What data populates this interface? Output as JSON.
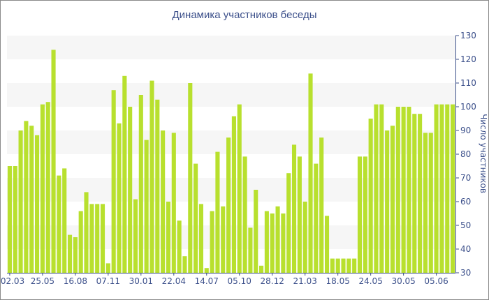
{
  "chart_data": {
    "type": "bar",
    "title": "Динамика участников беседы",
    "ylabel": "Число участников",
    "xlabel": "",
    "ylim": [
      30,
      130
    ],
    "yticks": [
      30,
      40,
      50,
      60,
      70,
      80,
      90,
      100,
      110,
      120,
      130
    ],
    "y_axis_side": "right",
    "grid": "alternating horizontal bands",
    "x_tick_labels": [
      "02.03",
      "25.05",
      "16.08",
      "07.11",
      "30.01",
      "22.04",
      "14.07",
      "05.10",
      "28.12",
      "21.03",
      "18.05",
      "24.05",
      "30.05",
      "05.06"
    ],
    "bar_color": "#b8e02e",
    "values": [
      75,
      75,
      90,
      94,
      92,
      88,
      101,
      102,
      124,
      71,
      74,
      46,
      45,
      56,
      64,
      59,
      59,
      59,
      34,
      107,
      93,
      113,
      100,
      61,
      105,
      86,
      111,
      103,
      90,
      60,
      89,
      52,
      37,
      110,
      76,
      59,
      32,
      56,
      81,
      58,
      87,
      96,
      101,
      79,
      49,
      65,
      33,
      56,
      55,
      58,
      55,
      72,
      84,
      79,
      60,
      114,
      76,
      87,
      54,
      36,
      36,
      36,
      36,
      36,
      79,
      79,
      95,
      101,
      101,
      90,
      92,
      100,
      100,
      100,
      97,
      97,
      89,
      89,
      101,
      101,
      101,
      101
    ]
  }
}
